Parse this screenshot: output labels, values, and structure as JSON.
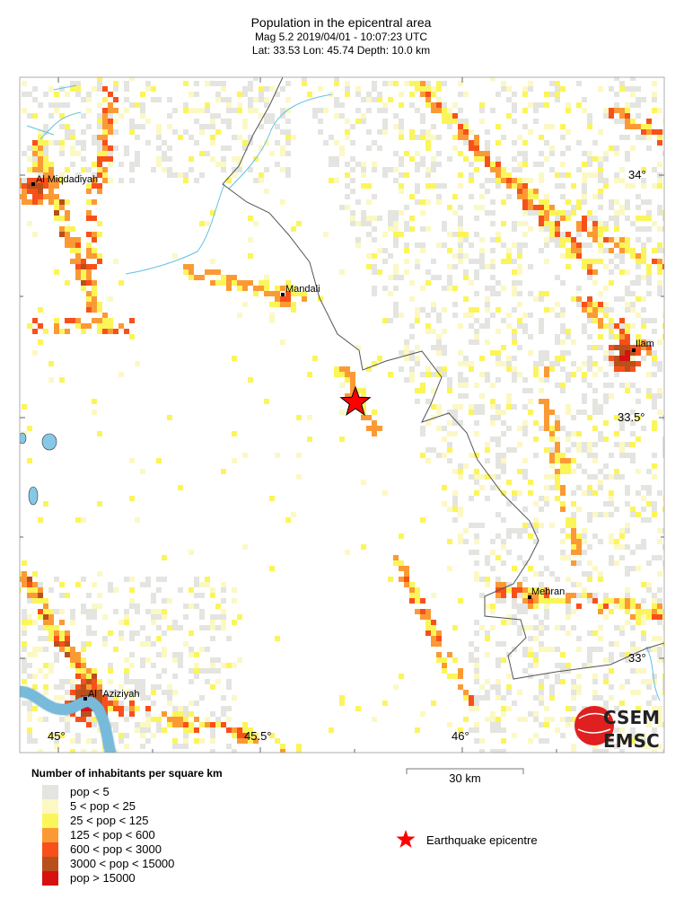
{
  "header": {
    "title": "Population in the epicentral area",
    "line2": "Mag 5.2  2019/04/01 - 10:07:23 UTC",
    "line3": "Lat: 33.53    Lon:  45.74     Depth:  10.0 km"
  },
  "event": {
    "magnitude": 5.2,
    "lat": 33.53,
    "lon": 45.74,
    "depth_km": 10.0
  },
  "map": {
    "cities": [
      {
        "name": "Al Miqdadiyah"
      },
      {
        "name": "Mandali"
      },
      {
        "name": "Ilam"
      },
      {
        "name": "Mehran"
      },
      {
        "name": "Al `Aziziyah"
      }
    ],
    "lat_ticks": [
      "34°",
      "33.5°",
      "33°"
    ],
    "lon_ticks": [
      "45°",
      "45.5°",
      "46°"
    ],
    "colors": {
      "water": "#87c8e8",
      "border": "#555555",
      "epicentre": "#ff0000"
    }
  },
  "legend": {
    "title": "Number of inhabitants per square km",
    "classes": [
      {
        "label": "pop < 5",
        "color": "#e4e4e0"
      },
      {
        "label": "5 < pop < 25",
        "color": "#fbf8c4"
      },
      {
        "label": "25 < pop < 125",
        "color": "#fbf55a"
      },
      {
        "label": "125 < pop < 600",
        "color": "#fb9a34"
      },
      {
        "label": "600 < pop < 3000",
        "color": "#f8501a"
      },
      {
        "label": "3000 < pop < 15000",
        "color": "#b8501c"
      },
      {
        "label": "pop > 15000",
        "color": "#d81010"
      }
    ],
    "scale_label": "30 km",
    "epicentre_label": "Earthquake epicentre"
  },
  "logo": {
    "line1": "CSEM",
    "line2": "EMSC"
  }
}
